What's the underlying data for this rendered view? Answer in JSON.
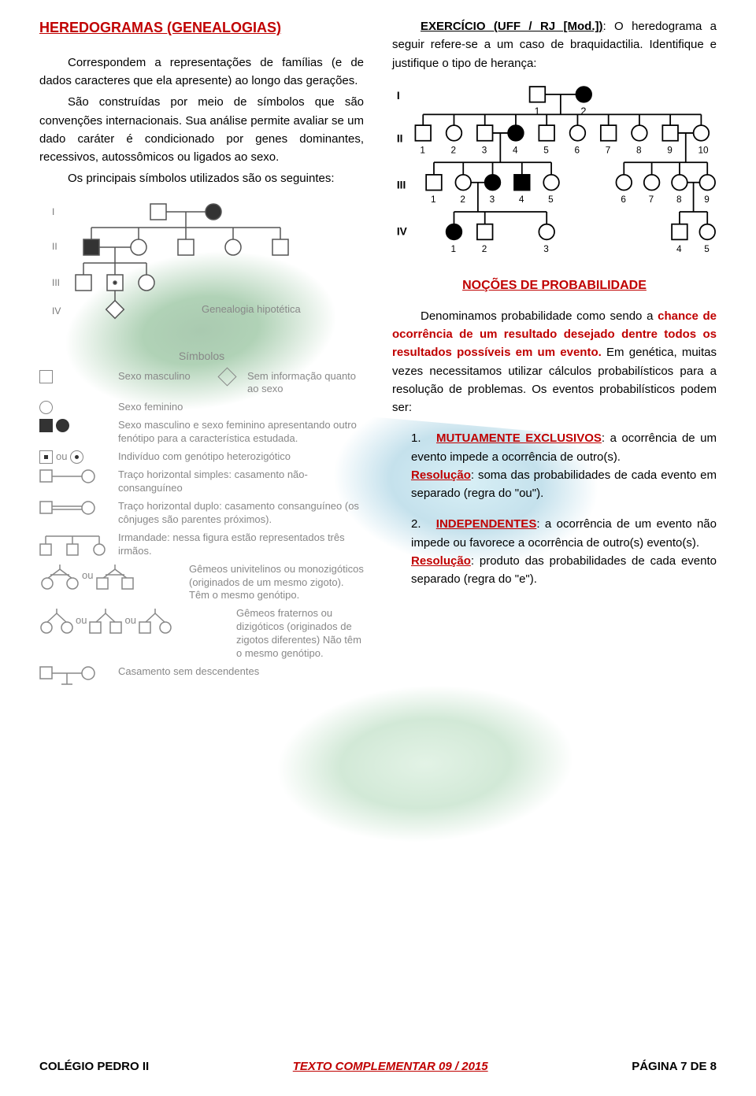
{
  "left": {
    "title": "HEREDOGRAMAS (GENEALOGIAS)",
    "p1": "Correspondem a representações de famílias (e de dados caracteres que ela apresente) ao longo das gerações.",
    "p2": "São construídas por meio de símbolos que são convenções internacionais. Sua análise permite avaliar se um dado caráter é condicionado por genes dominantes, recessivos, autossômicos ou ligados ao sexo.",
    "p3": "Os principais símbolos utilizados são os seguintes:",
    "sym_heading": "Símbolos",
    "gen_hip": "Genealogia hipotética",
    "legend": {
      "sx_m": "Sexo masculino",
      "sx_f": "Sexo feminino",
      "sem_info": "Sem informação quanto ao sexo",
      "afetados": "Sexo masculino e sexo feminino apresentando outro fenótipo para a característica estudada.",
      "hetero": "Indivíduo com genótipo heterozigótico",
      "traco_simples": "Traço horizontal simples: casamento não-consanguíneo",
      "traco_duplo": "Traço horizontal duplo: casamento consanguíneo (os cônjuges são parentes próximos).",
      "irmandade": "Irmandade: nessa figura estão representados três irmãos.",
      "univit": "Gêmeos univitelinos ou monozigóticos (originados de um mesmo zigoto). Têm o mesmo genótipo.",
      "frat": "Gêmeos fraternos ou dizigóticos (originados de zigotos diferentes) Não têm o mesmo genótipo.",
      "sem_desc": "Casamento sem descendentes",
      "ou": "ou"
    },
    "roman": {
      "r1": "I",
      "r2": "II",
      "r3": "III",
      "r4": "IV"
    }
  },
  "right": {
    "ex_label": "EXERCÍCIO (UFF / RJ [Mod.])",
    "ex_body": ": O heredograma a seguir refere-se a um caso de braquidactilia. Identifique e justifique o tipo de herança:",
    "roman": {
      "r1": "I",
      "r2": "II",
      "r3": "III",
      "r4": "IV"
    },
    "gen2_labels": [
      "1",
      "2",
      "3",
      "4",
      "5",
      "6",
      "7",
      "8",
      "9",
      "10"
    ],
    "gen1_labels": [
      "1",
      "2"
    ],
    "gen3_labels": [
      "1",
      "2",
      "3",
      "4",
      "5",
      "6",
      "7",
      "8",
      "9"
    ],
    "gen4_labels": [
      "1",
      "2",
      "3",
      "4",
      "5"
    ],
    "prob_title": "NOÇÕES DE PROBABILIDADE",
    "prob_intro_pre": "Denominamos probabilidade como sendo a ",
    "prob_intro_red": "chance de ocorrência de um resultado desejado dentre todos os resultados possíveis em um evento.",
    "prob_intro_post": " Em genética, muitas vezes necessitamos utilizar cálculos probabilísticos para a resolução de problemas. Os eventos probabilísticos podem ser:",
    "item1_num": "1.",
    "item1_kw": "MUTUAMENTE EXCLUSIVOS",
    "item1_body": ": a ocorrência de um evento impede a ocorrência de outro(s).",
    "item1_res_kw": "Resolução",
    "item1_res_body": ": soma das probabilidades de cada evento em separado (regra do \"ou\").",
    "item2_num": "2.",
    "item2_kw": "INDEPENDENTES",
    "item2_body": ": a ocorrência de um evento não impede ou favorece a ocorrência de outro(s) evento(s).",
    "item2_res_kw": "Resolução",
    "item2_res_body": ": produto das probabilidades de cada evento separado (regra do \"e\")."
  },
  "footer": {
    "left": "COLÉGIO PEDRO II",
    "mid": "TEXTO COMPLEMENTAR 09 / 2015",
    "right": "PÁGINA 7 DE 8"
  },
  "colors": {
    "red": "#c00000",
    "grey": "#888888"
  }
}
